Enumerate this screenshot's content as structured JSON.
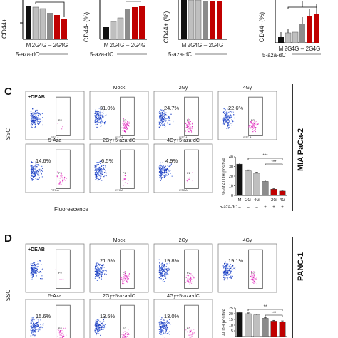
{
  "top_row": {
    "panels": [
      {
        "ylabel": "CD44+",
        "ticks": [
          "M",
          "2G",
          "4G",
          "–",
          "2G",
          "4G"
        ],
        "treatment": "5-aza-dC"
      },
      {
        "ylabel": "CD44- (%)",
        "ticks": [
          "M",
          "2G",
          "4G",
          "–",
          "2G",
          "4G"
        ],
        "treatment": "5-aza-dC"
      },
      {
        "ylabel": "CD44+ (%)",
        "ticks": [
          "M",
          "2G",
          "4G",
          "–",
          "2G",
          "4G"
        ],
        "treatment": "5-aza-dC"
      },
      {
        "ylabel": "CD44- (%)",
        "ticks": [
          "M",
          "2G",
          "4G",
          "–",
          "2G",
          "4G"
        ],
        "treatment": "5-aza-dC"
      }
    ]
  },
  "panel_c": {
    "letter": "C",
    "cell_line": "MIA PaCa-2",
    "axis_ssc": "SSC",
    "axis_fluor": "Fluorescence",
    "gate_name": "P2",
    "fitc": "FITC-A",
    "plots": [
      {
        "title": "+DEAB",
        "pct": "",
        "title_pos": "left"
      },
      {
        "title": "Mock",
        "pct": "31.0%"
      },
      {
        "title": "2Gy",
        "pct": "24.7%"
      },
      {
        "title": "4Gy",
        "pct": "22.6%"
      },
      {
        "title": "5-Aza",
        "pct": "14.6%"
      },
      {
        "title": "2Gy+5-aza-dC",
        "pct": "6.5%"
      },
      {
        "title": "4Gy+5-aza-dC",
        "pct": "4.9%"
      }
    ],
    "bar_chart": {
      "ylabel": "% of ALDH positive",
      "ticks": [
        "M",
        "2G",
        "4G",
        "–",
        "2G",
        "4G"
      ],
      "treatment_label": "5-aza-dC",
      "treatment_signs": [
        "–",
        "–",
        "–",
        "+",
        "+",
        "+"
      ],
      "sig": [
        "***",
        "***"
      ]
    }
  },
  "panel_d": {
    "letter": "D",
    "cell_line": "PANC-1",
    "axis_ssc": "SSC",
    "gate_name": "P2",
    "plots": [
      {
        "title": "+DEAB",
        "pct": "",
        "title_pos": "left"
      },
      {
        "title": "Mock",
        "pct": "21.5%"
      },
      {
        "title": "2Gy",
        "pct": "19.8%"
      },
      {
        "title": "4Gy",
        "pct": "19.1%"
      },
      {
        "title": "5-Aza",
        "pct": "15.6%"
      },
      {
        "title": "2Gy+5-aza-dC",
        "pct": "13.5%"
      },
      {
        "title": "4Gy+5-aza-dC",
        "pct": "13.0%"
      }
    ],
    "bar_chart": {
      "ylabel": "ALDH positive",
      "sig": [
        "**",
        "***"
      ]
    }
  },
  "chart_data": [
    {
      "type": "bar",
      "categories": [
        "M",
        "2G",
        "4G",
        "–",
        "2G",
        "4G"
      ],
      "values": [
        32.5,
        25.5,
        23.0,
        14.5,
        6.5,
        4.5
      ],
      "errors": [
        1.2,
        1.0,
        1.0,
        1.5,
        0.8,
        0.8
      ],
      "ylabel": "% of ALDH positive",
      "xlabel": "5-aza-dC",
      "ylim": [
        0,
        40
      ],
      "yticks": [
        0,
        10,
        20,
        30,
        40
      ],
      "colors": [
        "#111111",
        "#bfbfbf",
        "#bfbfbf",
        "#8c8c8c",
        "#c00000",
        "#c00000"
      ]
    },
    {
      "type": "bar",
      "categories": [
        "M",
        "2G",
        "4G",
        "–",
        "2G",
        "4G"
      ],
      "values": [
        21.0,
        20.0,
        19.0,
        16.0,
        13.5,
        13.0
      ],
      "errors": [
        0.7,
        0.7,
        0.7,
        0.7,
        0.7,
        0.7
      ],
      "ylabel": "ALDH positive",
      "yticks": [
        5,
        10,
        15,
        20,
        25
      ],
      "ylim": [
        0,
        25
      ],
      "colors": [
        "#111111",
        "#bfbfbf",
        "#bfbfbf",
        "#8c8c8c",
        "#c00000",
        "#c00000"
      ]
    }
  ]
}
